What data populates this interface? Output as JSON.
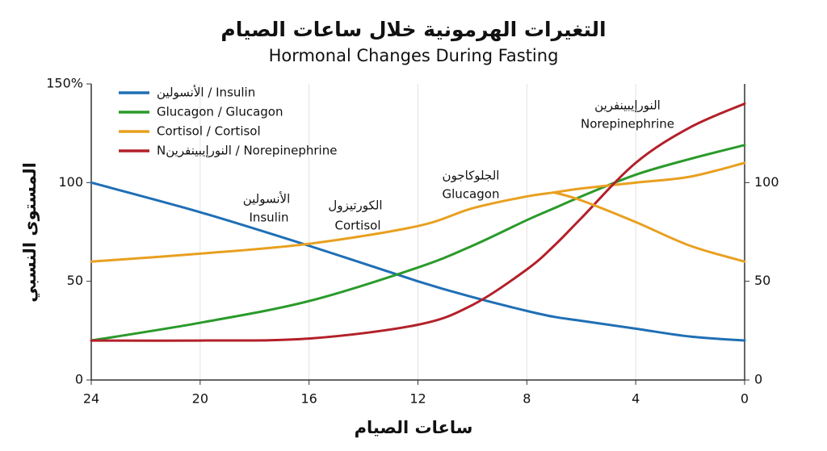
{
  "chart_data": {
    "type": "line",
    "title": "التغيرات الهرمونية خلال ساعات الصيام",
    "subtitle": "Hormonal Changes During Fasting",
    "y_label": "المستوى النسبي",
    "x_label": "ساعات الصيام",
    "x": [
      24,
      20,
      16,
      12,
      10,
      8,
      7,
      6,
      4,
      2,
      0
    ],
    "xlim": [
      24,
      0
    ],
    "xticks": [
      24,
      20,
      16,
      12,
      8,
      4,
      0
    ],
    "ylim": [
      0,
      150
    ],
    "yticks": [
      0,
      50,
      100,
      {
        "value": 150,
        "label": "150%"
      }
    ],
    "y2lim": [
      0,
      150
    ],
    "y2ticks": [
      0,
      50,
      100
    ],
    "grid": "x",
    "legend": "upper left",
    "series": [
      {
        "name": "الأنسولين / Insulin",
        "color": "#1f6fb5",
        "values": [
          100,
          85,
          68,
          50,
          42,
          35,
          32,
          30,
          26,
          22,
          20
        ]
      },
      {
        "name": "Glucagon / Glucagon",
        "color": "#2a9a2a",
        "values": [
          20,
          29,
          40,
          57,
          68,
          81,
          87,
          93,
          104,
          112,
          119
        ]
      },
      {
        "name": "Cortisol / Cortisol",
        "color": "#e8a020",
        "values": [
          60,
          64,
          69,
          78,
          87,
          93,
          95,
          97,
          100,
          103,
          110
        ]
      },
      {
        "name": "Nالنورإيبينفرين / Norepinephrine",
        "color": "#b3202a",
        "values": [
          20,
          20,
          21,
          28,
          38,
          56,
          68,
          82,
          110,
          128,
          140
        ]
      },
      {
        "color": "#e8a020",
        "values": [
          null,
          null,
          null,
          null,
          null,
          null,
          95,
          91,
          80,
          68,
          60
        ]
      }
    ],
    "annotations": [
      {
        "text": "الأنسولين"
      },
      {
        "text": "Insulin"
      },
      {
        "text": "الكورتيزول"
      },
      {
        "text": "Cortisol"
      },
      {
        "text": "الجلوكاجون"
      },
      {
        "text": "Glucagon"
      },
      {
        "text": "النورإيبينفرين"
      },
      {
        "text": "Norepinephrine"
      }
    ]
  }
}
